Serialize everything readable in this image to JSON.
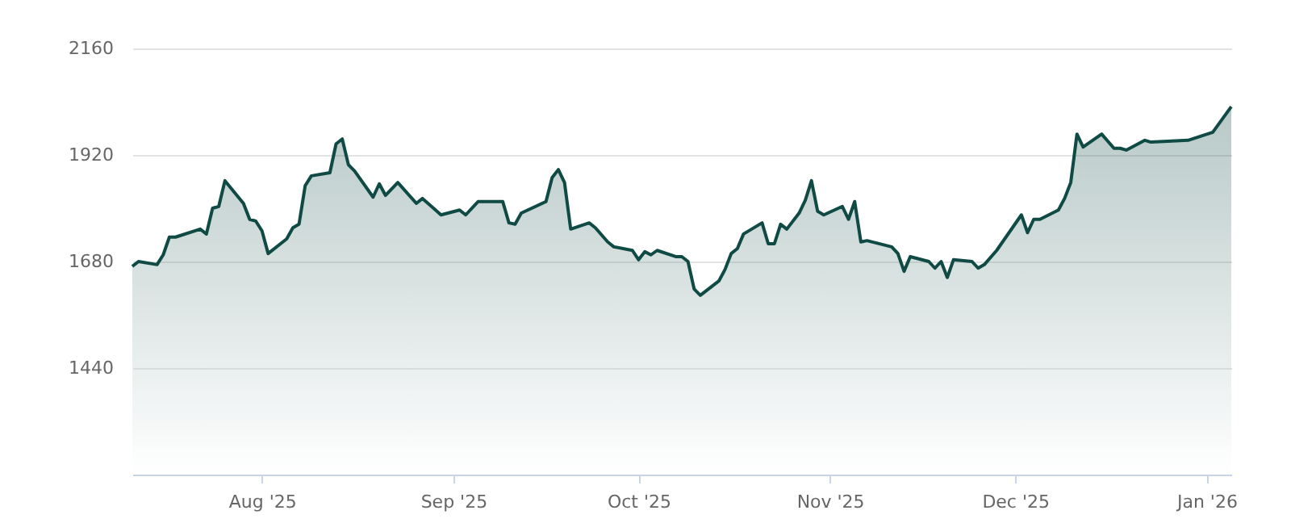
{
  "chart_data": {
    "type": "area",
    "color": "#0f4a45",
    "x": [
      "2025-07-11",
      "2025-07-12",
      "2025-07-15",
      "2025-07-16",
      "2025-07-17",
      "2025-07-18",
      "2025-07-22",
      "2025-07-23",
      "2025-07-24",
      "2025-07-25",
      "2025-07-26",
      "2025-07-29",
      "2025-07-30",
      "2025-07-31",
      "2025-08-01",
      "2025-08-02",
      "2025-08-05",
      "2025-08-06",
      "2025-08-07",
      "2025-08-08",
      "2025-08-09",
      "2025-08-12",
      "2025-08-13",
      "2025-08-14",
      "2025-08-15",
      "2025-08-16",
      "2025-08-19",
      "2025-08-20",
      "2025-08-21",
      "2025-08-23",
      "2025-08-26",
      "2025-08-27",
      "2025-08-30",
      "2025-09-02",
      "2025-09-03",
      "2025-09-05",
      "2025-09-09",
      "2025-09-10",
      "2025-09-11",
      "2025-09-12",
      "2025-09-16",
      "2025-09-17",
      "2025-09-18",
      "2025-09-19",
      "2025-09-20",
      "2025-09-23",
      "2025-09-24",
      "2025-09-26",
      "2025-09-27",
      "2025-09-30",
      "2025-10-01",
      "2025-10-02",
      "2025-10-03",
      "2025-10-04",
      "2025-10-07",
      "2025-10-08",
      "2025-10-09",
      "2025-10-10",
      "2025-10-11",
      "2025-10-14",
      "2025-10-15",
      "2025-10-16",
      "2025-10-17",
      "2025-10-18",
      "2025-10-21",
      "2025-10-22",
      "2025-10-23",
      "2025-10-24",
      "2025-10-25",
      "2025-10-27",
      "2025-10-28",
      "2025-10-29",
      "2025-10-30",
      "2025-10-31",
      "2025-11-03",
      "2025-11-04",
      "2025-11-05",
      "2025-11-06",
      "2025-11-07",
      "2025-11-11",
      "2025-11-12",
      "2025-11-13",
      "2025-11-14",
      "2025-11-17",
      "2025-11-18",
      "2025-11-19",
      "2025-11-20",
      "2025-11-21",
      "2025-11-24",
      "2025-11-25",
      "2025-11-26",
      "2025-11-28",
      "2025-12-02",
      "2025-12-03",
      "2025-12-04",
      "2025-12-05",
      "2025-12-08",
      "2025-12-09",
      "2025-12-10",
      "2025-12-11",
      "2025-12-12",
      "2025-12-15",
      "2025-12-17",
      "2025-12-18",
      "2025-12-19",
      "2025-12-22",
      "2025-12-23",
      "2025-12-29",
      "2026-01-02",
      "2026-01-05"
    ],
    "values": [
      1669,
      1680,
      1673,
      1695,
      1735,
      1735,
      1753,
      1742,
      1800,
      1804,
      1862,
      1811,
      1775,
      1771,
      1749,
      1698,
      1731,
      1756,
      1764,
      1851,
      1873,
      1880,
      1945,
      1956,
      1898,
      1884,
      1825,
      1855,
      1829,
      1858,
      1811,
      1822,
      1785,
      1796,
      1785,
      1815,
      1815,
      1767,
      1764,
      1789,
      1815,
      1869,
      1887,
      1858,
      1753,
      1767,
      1756,
      1724,
      1713,
      1705,
      1684,
      1702,
      1695,
      1705,
      1691,
      1691,
      1680,
      1618,
      1604,
      1636,
      1662,
      1698,
      1709,
      1742,
      1767,
      1720,
      1720,
      1764,
      1753,
      1789,
      1818,
      1862,
      1793,
      1785,
      1804,
      1775,
      1815,
      1724,
      1727,
      1713,
      1698,
      1658,
      1691,
      1680,
      1665,
      1680,
      1644,
      1684,
      1680,
      1665,
      1673,
      1705,
      1785,
      1745,
      1775,
      1775,
      1796,
      1822,
      1858,
      1967,
      1938,
      1967,
      1935,
      1935,
      1931,
      1953,
      1949,
      1953,
      1971,
      2029
    ],
    "xlim": [
      "2025-07-11",
      "2026-01-05"
    ],
    "xticks": [
      {
        "value": "2025-08-01",
        "label": "Aug '25"
      },
      {
        "value": "2025-09-01",
        "label": "Sep '25"
      },
      {
        "value": "2025-10-01",
        "label": "Oct '25"
      },
      {
        "value": "2025-11-01",
        "label": "Nov '25"
      },
      {
        "value": "2025-12-01",
        "label": "Dec '25"
      },
      {
        "value": "2026-01-01",
        "label": "Jan '26"
      }
    ],
    "ylim": [
      1200,
      2160
    ],
    "yticks": [
      1440,
      1680,
      1920,
      2160
    ],
    "grid": "y"
  }
}
